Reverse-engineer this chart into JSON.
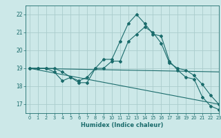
{
  "xlabel": "Humidex (Indice chaleur)",
  "ylabel": "",
  "background_color": "#cce8e8",
  "grid_color": "#aacccc",
  "line_color": "#1a6b6b",
  "xlim": [
    -0.5,
    23
  ],
  "ylim": [
    16.5,
    22.5
  ],
  "xticks": [
    0,
    1,
    2,
    3,
    4,
    5,
    6,
    7,
    8,
    9,
    10,
    11,
    12,
    13,
    14,
    15,
    16,
    17,
    18,
    19,
    20,
    21,
    22,
    23
  ],
  "yticks": [
    17,
    18,
    19,
    20,
    21,
    22
  ],
  "series": [
    {
      "x": [
        0,
        1,
        2,
        3,
        4,
        5,
        6,
        7,
        8,
        9,
        10,
        11,
        12,
        13,
        14,
        15,
        16,
        17,
        18,
        19,
        20,
        21,
        22,
        23
      ],
      "y": [
        19.0,
        19.0,
        19.0,
        19.0,
        18.8,
        18.5,
        18.3,
        18.5,
        19.0,
        19.5,
        19.5,
        20.5,
        21.5,
        22.0,
        21.5,
        20.9,
        20.8,
        19.4,
        18.9,
        18.5,
        18.4,
        17.4,
        16.9,
        16.7
      ],
      "marker": "D",
      "markersize": 2.0
    },
    {
      "x": [
        0,
        1,
        2,
        3,
        4,
        5,
        6,
        7,
        8,
        9,
        10,
        11,
        12,
        13,
        14,
        15,
        16,
        17,
        18,
        19,
        20,
        21,
        22,
        23
      ],
      "y": [
        19.0,
        19.0,
        19.0,
        18.8,
        18.3,
        18.5,
        18.2,
        18.2,
        19.0,
        19.0,
        19.4,
        19.4,
        20.5,
        20.9,
        21.3,
        21.0,
        20.4,
        19.3,
        19.0,
        18.9,
        18.6,
        18.1,
        17.5,
        17.0
      ],
      "marker": "D",
      "markersize": 2.0
    },
    {
      "x": [
        0,
        23
      ],
      "y": [
        19.0,
        18.8
      ],
      "marker": null,
      "markersize": 0
    },
    {
      "x": [
        0,
        23
      ],
      "y": [
        19.0,
        17.0
      ],
      "marker": null,
      "markersize": 0
    }
  ]
}
